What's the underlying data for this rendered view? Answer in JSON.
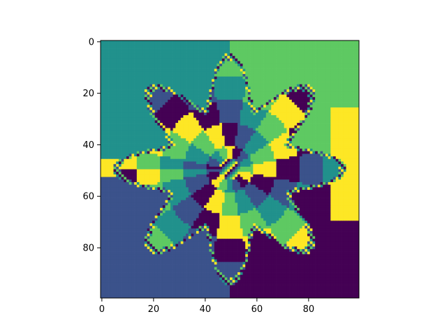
{
  "chart_data": {
    "type": "heatmap",
    "title": "",
    "xlabel": "",
    "ylabel": "",
    "description_of_values": "integer class index per cell",
    "rows": 100,
    "cols": 100,
    "xlim": [
      -0.5,
      99.5
    ],
    "ylim": [
      99.5,
      -0.5
    ],
    "x_ticks": [
      0,
      20,
      40,
      60,
      80
    ],
    "y_ticks": [
      0,
      20,
      40,
      60,
      80
    ],
    "x_tick_labels": [
      "0",
      "20",
      "40",
      "60",
      "80"
    ],
    "y_tick_labels": [
      "0",
      "20",
      "40",
      "60",
      "80"
    ],
    "colormap": "viridis",
    "class_colors": [
      "#440154",
      "#3b528b",
      "#21918c",
      "#5ec962",
      "#fde725"
    ],
    "grid": false,
    "legend": "none",
    "center": [
      49.5,
      49.5
    ]
  }
}
